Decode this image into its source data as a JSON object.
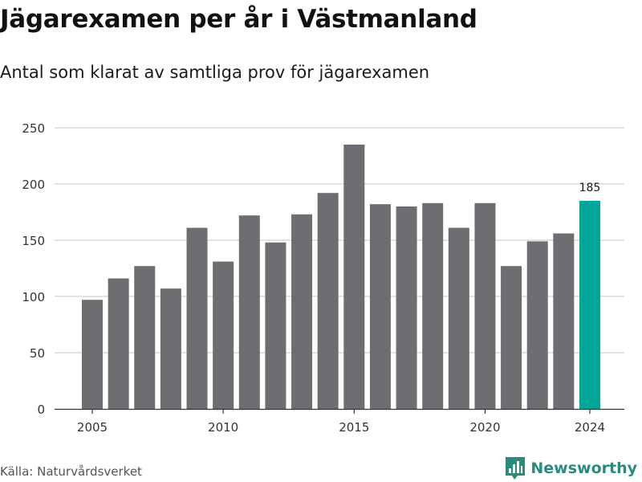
{
  "title": "Jägarexamen per år i Västmanland",
  "subtitle": "Antal som klarat av samtliga prov för jägarexamen",
  "source": "Källa: Naturvårdsverket",
  "brand": {
    "name": "Newsworthy",
    "icon": "newsworthy-logo-icon",
    "color": "#2a8a80"
  },
  "colors": {
    "bar": "#6e6d72",
    "highlight": "#00a699",
    "grid": "#d9d9d9",
    "axis": "#333333"
  },
  "chart_data": {
    "type": "bar",
    "title": "Jägarexamen per år i Västmanland",
    "subtitle": "Antal som klarat av samtliga prov för jägarexamen",
    "xlabel": "",
    "ylabel": "",
    "categories": [
      2005,
      2006,
      2007,
      2008,
      2009,
      2010,
      2011,
      2012,
      2013,
      2014,
      2015,
      2016,
      2017,
      2018,
      2019,
      2020,
      2021,
      2022,
      2023,
      2024
    ],
    "values": [
      97,
      116,
      127,
      107,
      161,
      131,
      172,
      148,
      173,
      192,
      235,
      182,
      180,
      183,
      161,
      183,
      127,
      149,
      156,
      185
    ],
    "ylim": [
      0,
      250
    ],
    "yticks": [
      0,
      50,
      100,
      150,
      200,
      250
    ],
    "xticks": [
      2005,
      2010,
      2015,
      2020,
      2024
    ],
    "highlight_category": 2024,
    "data_labels": [
      {
        "category": 2024,
        "text": "185"
      }
    ],
    "grid": true,
    "legend": "none"
  }
}
